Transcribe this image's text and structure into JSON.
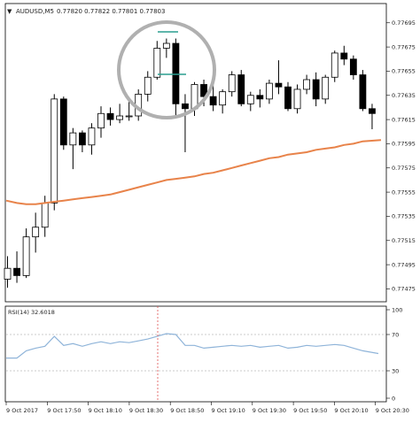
{
  "header": {
    "menu_glyph": "▼",
    "symbol": "AUDUSD,M5",
    "ohlc": "0.77820 0.77822 0.77801 0.77803"
  },
  "colors": {
    "bull_body": "#ffffff",
    "bear_body": "#000000",
    "candle_outline": "#000000",
    "ma_line": "#e8834a",
    "rsi_line": "#8fb4d9",
    "rsi_levels": "#bbbbbb",
    "time_marker": "#e05050",
    "highlight_circle": "#b0b0b0",
    "marker_lines": "#2a9d8f"
  },
  "chart_data": [
    {
      "type": "candlestick",
      "series": [
        {
          "name": "",
          "ohlc": [
            [
              0.77483,
              0.77502,
              0.77476,
              0.77492
            ],
            [
              0.77492,
              0.77506,
              0.7748,
              0.77486
            ],
            [
              0.77486,
              0.77525,
              0.77484,
              0.77518
            ],
            [
              0.77518,
              0.77538,
              0.77505,
              0.77526
            ],
            [
              0.77526,
              0.77552,
              0.77518,
              0.77546
            ],
            [
              0.77546,
              0.77636,
              0.7754,
              0.77632
            ],
            [
              0.77632,
              0.77634,
              0.7759,
              0.77594
            ],
            [
              0.77594,
              0.77608,
              0.77574,
              0.77604
            ],
            [
              0.77604,
              0.77606,
              0.77588,
              0.77594
            ],
            [
              0.77594,
              0.77612,
              0.77586,
              0.77608
            ],
            [
              0.77608,
              0.77626,
              0.776,
              0.7762
            ],
            [
              0.7762,
              0.77625,
              0.7761,
              0.77615
            ],
            [
              0.77615,
              0.77628,
              0.77612,
              0.77618
            ],
            [
              0.77618,
              0.7763,
              0.77614,
              0.77618
            ],
            [
              0.77618,
              0.7764,
              0.77614,
              0.77636
            ],
            [
              0.77636,
              0.77655,
              0.7763,
              0.7765
            ],
            [
              0.7765,
              0.7768,
              0.77648,
              0.77674
            ],
            [
              0.77674,
              0.77682,
              0.77666,
              0.77678
            ],
            [
              0.77678,
              0.77682,
              0.77618,
              0.77628
            ],
            [
              0.77628,
              0.77636,
              0.77588,
              0.77624
            ],
            [
              0.77624,
              0.77646,
              0.77618,
              0.77644
            ],
            [
              0.77644,
              0.77648,
              0.77626,
              0.77634
            ],
            [
              0.77634,
              0.77648,
              0.77622,
              0.77627
            ],
            [
              0.77627,
              0.7764,
              0.7762,
              0.77638
            ],
            [
              0.77638,
              0.77655,
              0.77634,
              0.77652
            ],
            [
              0.77652,
              0.77656,
              0.77626,
              0.77628
            ],
            [
              0.77628,
              0.77638,
              0.77622,
              0.77635
            ],
            [
              0.77635,
              0.7764,
              0.77625,
              0.77632
            ],
            [
              0.77632,
              0.77648,
              0.77628,
              0.77645
            ],
            [
              0.77645,
              0.77664,
              0.77636,
              0.77642
            ],
            [
              0.77642,
              0.77646,
              0.77622,
              0.77624
            ],
            [
              0.77624,
              0.77644,
              0.7762,
              0.7764
            ],
            [
              0.7764,
              0.77652,
              0.77636,
              0.77648
            ],
            [
              0.77648,
              0.77654,
              0.77626,
              0.77632
            ],
            [
              0.77632,
              0.77652,
              0.77628,
              0.7765
            ],
            [
              0.7765,
              0.77672,
              0.77646,
              0.7767
            ],
            [
              0.7767,
              0.77676,
              0.7766,
              0.77665
            ],
            [
              0.77665,
              0.77668,
              0.77648,
              0.77652
            ],
            [
              0.77652,
              0.77656,
              0.77622,
              0.77624
            ],
            [
              0.77624,
              0.77628,
              0.77607,
              0.7762
            ]
          ]
        },
        {
          "name": "",
          "kind": "moving-average",
          "values": [
            0.77548,
            0.77546,
            0.77545,
            0.77545,
            0.77546,
            0.77547,
            0.77548,
            0.77549,
            0.7755,
            0.77551,
            0.77552,
            0.77553,
            0.77555,
            0.77557,
            0.77559,
            0.77561,
            0.77563,
            0.77565,
            0.77566,
            0.77567,
            0.77568,
            0.7757,
            0.77571,
            0.77573,
            0.77575,
            0.77577,
            0.77579,
            0.77581,
            0.77583,
            0.77584,
            0.77586,
            0.77587,
            0.77588,
            0.7759,
            0.77591,
            0.77592,
            0.77594,
            0.77595,
            0.77597,
            0.77598
          ]
        }
      ],
      "y_ticks": [
        "0.77695",
        "0.77675",
        "0.77655",
        "0.77635",
        "0.77615",
        "0.77595",
        "0.77575",
        "0.77555",
        "0.77535",
        "0.77515",
        "0.77495",
        "0.77475"
      ],
      "ylim": [
        0.77468,
        0.77708
      ],
      "grid": false
    },
    {
      "type": "line",
      "title": "RSI(14) 32.6018",
      "series": [
        {
          "name": "",
          "values": [
            44,
            44,
            52,
            55,
            57,
            68,
            58,
            60,
            57,
            60,
            62,
            60,
            62,
            61,
            63,
            65,
            68,
            71,
            70,
            58,
            58,
            55,
            56,
            57,
            58,
            57,
            58,
            56,
            57,
            58,
            55,
            56,
            58,
            57,
            58,
            59,
            58,
            55,
            52,
            49
          ]
        }
      ],
      "y_ticks": [
        "100",
        "70",
        "30",
        "0"
      ],
      "levels": [
        70,
        30
      ],
      "ylim": [
        0,
        100
      ]
    }
  ],
  "x_labels": [
    "9 Oct 2017",
    "9 Oct 17:50",
    "9 Oct 18:10",
    "9 Oct 18:30",
    "9 Oct 18:50",
    "9 Oct 19:10",
    "9 Oct 19:30",
    "9 Oct 19:50",
    "9 Oct 20:10",
    "9 Oct 20:30"
  ],
  "x_label_indices": [
    0,
    7,
    13,
    19,
    25,
    30,
    36,
    41,
    47,
    52
  ]
}
